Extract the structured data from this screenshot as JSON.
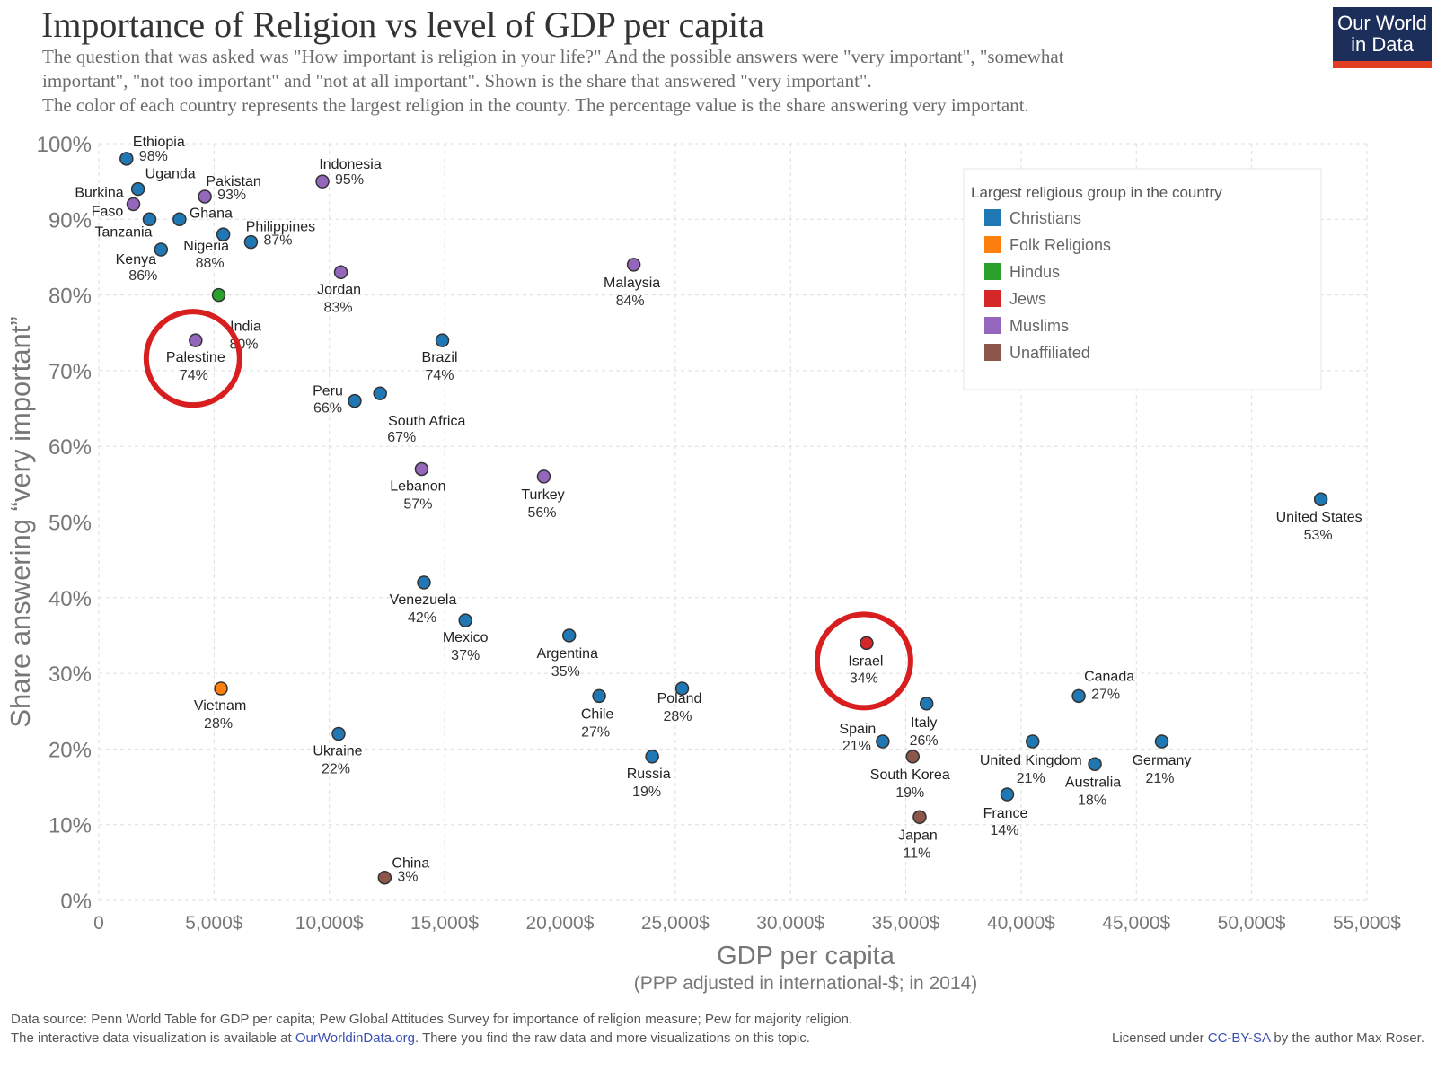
{
  "header": {
    "title": "Importance of Religion vs level of GDP per capita",
    "subtitle_lines": [
      "The question that was asked was \"How important is religion in your life?\" And the possible answers were \"very important\", \"somewhat",
      "important\", \"not too important\" and \"not at all important\". Shown is the share that answered \"very important\".",
      "The color of each country represents the largest religion in the county. The percentage value is the share answering very important."
    ],
    "logo_line1": "Our World",
    "logo_line2": "in Data"
  },
  "footer": {
    "source_line": "Data source: Penn World Table for GDP per capita; Pew Global Attitudes Survey for importance of religion measure; Pew for majority religion.",
    "interactive_prefix": "The interactive data visualization is available at ",
    "interactive_link": "OurWorldinData.org",
    "interactive_suffix": ". There you find the raw data and more visualizations on this topic.",
    "license_prefix": "Licensed under ",
    "license_link": "CC-BY-SA",
    "license_suffix": " by the author Max Roser."
  },
  "chart_data": {
    "type": "scatter",
    "xlabel": "GDP per capita",
    "xlabel_sub": "(PPP adjusted in international-$; in 2014)",
    "ylabel": "Share answering “very important”",
    "xlim": [
      0,
      55000
    ],
    "ylim": [
      0,
      100
    ],
    "x_ticks": [
      {
        "value": 0,
        "label": "0"
      },
      {
        "value": 5000,
        "label": "5,000$"
      },
      {
        "value": 10000,
        "label": "10,000$"
      },
      {
        "value": 15000,
        "label": "15,000$"
      },
      {
        "value": 20000,
        "label": "20,000$"
      },
      {
        "value": 25000,
        "label": "25,000$"
      },
      {
        "value": 30000,
        "label": "30,000$"
      },
      {
        "value": 35000,
        "label": "35,000$"
      },
      {
        "value": 40000,
        "label": "40,000$"
      },
      {
        "value": 45000,
        "label": "45,000$"
      },
      {
        "value": 50000,
        "label": "50,000$"
      },
      {
        "value": 55000,
        "label": "55,000$"
      }
    ],
    "y_ticks": [
      {
        "value": 0,
        "label": "0%"
      },
      {
        "value": 10,
        "label": "10%"
      },
      {
        "value": 20,
        "label": "20%"
      },
      {
        "value": 30,
        "label": "30%"
      },
      {
        "value": 40,
        "label": "40%"
      },
      {
        "value": 50,
        "label": "50%"
      },
      {
        "value": 60,
        "label": "60%"
      },
      {
        "value": 70,
        "label": "70%"
      },
      {
        "value": 80,
        "label": "80%"
      },
      {
        "value": 90,
        "label": "90%"
      },
      {
        "value": 100,
        "label": "100%"
      }
    ],
    "grid": true,
    "legend": {
      "title": "Largest religious group in the country",
      "placement": "top-right",
      "items": [
        {
          "name": "Christians",
          "color": "#1f77b4"
        },
        {
          "name": "Folk Religions",
          "color": "#ff7f0e"
        },
        {
          "name": "Hindus",
          "color": "#2ca02c"
        },
        {
          "name": "Jews",
          "color": "#d62728"
        },
        {
          "name": "Muslims",
          "color": "#9467bd"
        },
        {
          "name": "Unaffiliated",
          "color": "#8c564b"
        }
      ]
    },
    "points": [
      {
        "country": "Ethiopia",
        "value_label": "98%",
        "x": 1200,
        "y": 98,
        "group": "Christians"
      },
      {
        "country": "Uganda",
        "value_label": "",
        "x": 1700,
        "y": 94,
        "group": "Christians"
      },
      {
        "country": "Pakistan",
        "value_label": "93%",
        "x": 4600,
        "y": 93,
        "group": "Muslims"
      },
      {
        "country": "Indonesia",
        "value_label": "95%",
        "x": 9700,
        "y": 95,
        "group": "Muslims"
      },
      {
        "country": "Burkina Faso",
        "value_label": "",
        "x": 1500,
        "y": 92,
        "group": "Muslims"
      },
      {
        "country": "Tanzania",
        "value_label": "",
        "x": 2200,
        "y": 90,
        "group": "Christians"
      },
      {
        "country": "Ghana",
        "value_label": "",
        "x": 3500,
        "y": 90,
        "group": "Christians"
      },
      {
        "country": "Nigeria",
        "value_label": "88%",
        "x": 5400,
        "y": 88,
        "group": "Christians"
      },
      {
        "country": "Philippines",
        "value_label": "87%",
        "x": 6600,
        "y": 87,
        "group": "Christians"
      },
      {
        "country": "Kenya",
        "value_label": "86%",
        "x": 2700,
        "y": 86,
        "group": "Christians"
      },
      {
        "country": "Malaysia",
        "value_label": "84%",
        "x": 23200,
        "y": 84,
        "group": "Muslims"
      },
      {
        "country": "Jordan",
        "value_label": "83%",
        "x": 10500,
        "y": 83,
        "group": "Muslims"
      },
      {
        "country": "India",
        "value_label": "80%",
        "x": 5200,
        "y": 80,
        "group": "Hindus"
      },
      {
        "country": "Palestine",
        "value_label": "74%",
        "x": 4200,
        "y": 74,
        "group": "Muslims"
      },
      {
        "country": "Brazil",
        "value_label": "74%",
        "x": 14900,
        "y": 74,
        "group": "Christians"
      },
      {
        "country": "Peru",
        "value_label": "66%",
        "x": 11100,
        "y": 66,
        "group": "Christians"
      },
      {
        "country": "South Africa",
        "value_label": "67%",
        "x": 12200,
        "y": 67,
        "group": "Christians"
      },
      {
        "country": "Lebanon",
        "value_label": "57%",
        "x": 14000,
        "y": 57,
        "group": "Muslims"
      },
      {
        "country": "Turkey",
        "value_label": "56%",
        "x": 19300,
        "y": 56,
        "group": "Muslims"
      },
      {
        "country": "United States",
        "value_label": "53%",
        "x": 53000,
        "y": 53,
        "group": "Christians"
      },
      {
        "country": "Venezuela",
        "value_label": "42%",
        "x": 14100,
        "y": 42,
        "group": "Christians"
      },
      {
        "country": "Mexico",
        "value_label": "37%",
        "x": 15900,
        "y": 37,
        "group": "Christians"
      },
      {
        "country": "Argentina",
        "value_label": "35%",
        "x": 20400,
        "y": 35,
        "group": "Christians"
      },
      {
        "country": "Israel",
        "value_label": "34%",
        "x": 33300,
        "y": 34,
        "group": "Jews"
      },
      {
        "country": "Vietnam",
        "value_label": "28%",
        "x": 5300,
        "y": 28,
        "group": "Folk Religions"
      },
      {
        "country": "Chile",
        "value_label": "27%",
        "x": 21700,
        "y": 27,
        "group": "Christians"
      },
      {
        "country": "Poland",
        "value_label": "28%",
        "x": 25300,
        "y": 28,
        "group": "Christians"
      },
      {
        "country": "Canada",
        "value_label": "27%",
        "x": 42500,
        "y": 27,
        "group": "Christians"
      },
      {
        "country": "Italy",
        "value_label": "26%",
        "x": 35900,
        "y": 26,
        "group": "Christians"
      },
      {
        "country": "Ukraine",
        "value_label": "22%",
        "x": 10400,
        "y": 22,
        "group": "Christians"
      },
      {
        "country": "Spain",
        "value_label": "21%",
        "x": 34000,
        "y": 21,
        "group": "Christians"
      },
      {
        "country": "United Kingdom",
        "value_label": "21%",
        "x": 40500,
        "y": 21,
        "group": "Christians"
      },
      {
        "country": "Germany",
        "value_label": "21%",
        "x": 46100,
        "y": 21,
        "group": "Christians"
      },
      {
        "country": "Russia",
        "value_label": "19%",
        "x": 24000,
        "y": 19,
        "group": "Christians"
      },
      {
        "country": "South Korea",
        "value_label": "19%",
        "x": 35300,
        "y": 19,
        "group": "Unaffiliated"
      },
      {
        "country": "Australia",
        "value_label": "18%",
        "x": 43200,
        "y": 18,
        "group": "Christians"
      },
      {
        "country": "France",
        "value_label": "14%",
        "x": 39400,
        "y": 14,
        "group": "Christians"
      },
      {
        "country": "Japan",
        "value_label": "11%",
        "x": 35600,
        "y": 11,
        "group": "Unaffiliated"
      },
      {
        "country": "China",
        "value_label": "3%",
        "x": 12400,
        "y": 3,
        "group": "Unaffiliated"
      }
    ],
    "highlighted": [
      "Palestine",
      "Israel"
    ],
    "highlight_color": "#d81e1e"
  }
}
